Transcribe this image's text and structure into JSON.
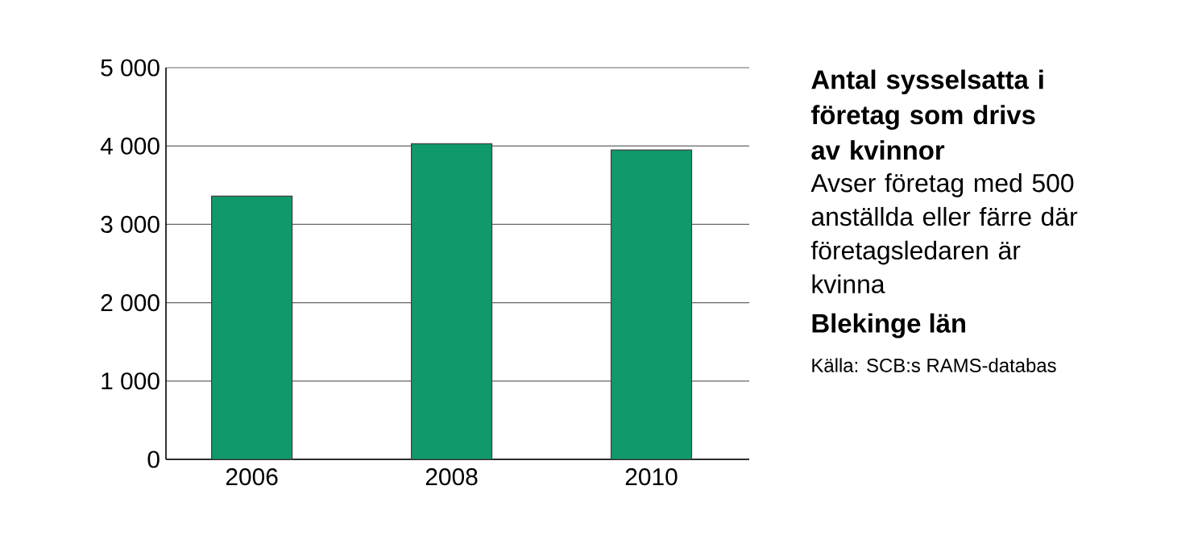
{
  "chart_data": {
    "type": "bar",
    "title": "Antal sysselsatta i företag som drivs av kvinnor",
    "subtitle": "Avser företag med 500 anställda eller färre där företagsledaren är kvinna",
    "categories": [
      "2006",
      "2008",
      "2010"
    ],
    "values": [
      3360,
      4030,
      3950
    ],
    "color": "#10996a",
    "ylim": [
      0,
      5000
    ],
    "yticks": [
      0,
      {
        "value": 1000,
        "label": "1 000"
      },
      {
        "value": 2000,
        "label": "2 000"
      },
      {
        "value": 3000,
        "label": "3 000"
      },
      {
        "value": 4000,
        "label": "4 000"
      },
      {
        "value": 5000,
        "label": "5 000"
      }
    ],
    "grid": "y",
    "annotations": [
      "Blekinge län",
      "Källa: SCB:s RAMS-databas"
    ]
  }
}
